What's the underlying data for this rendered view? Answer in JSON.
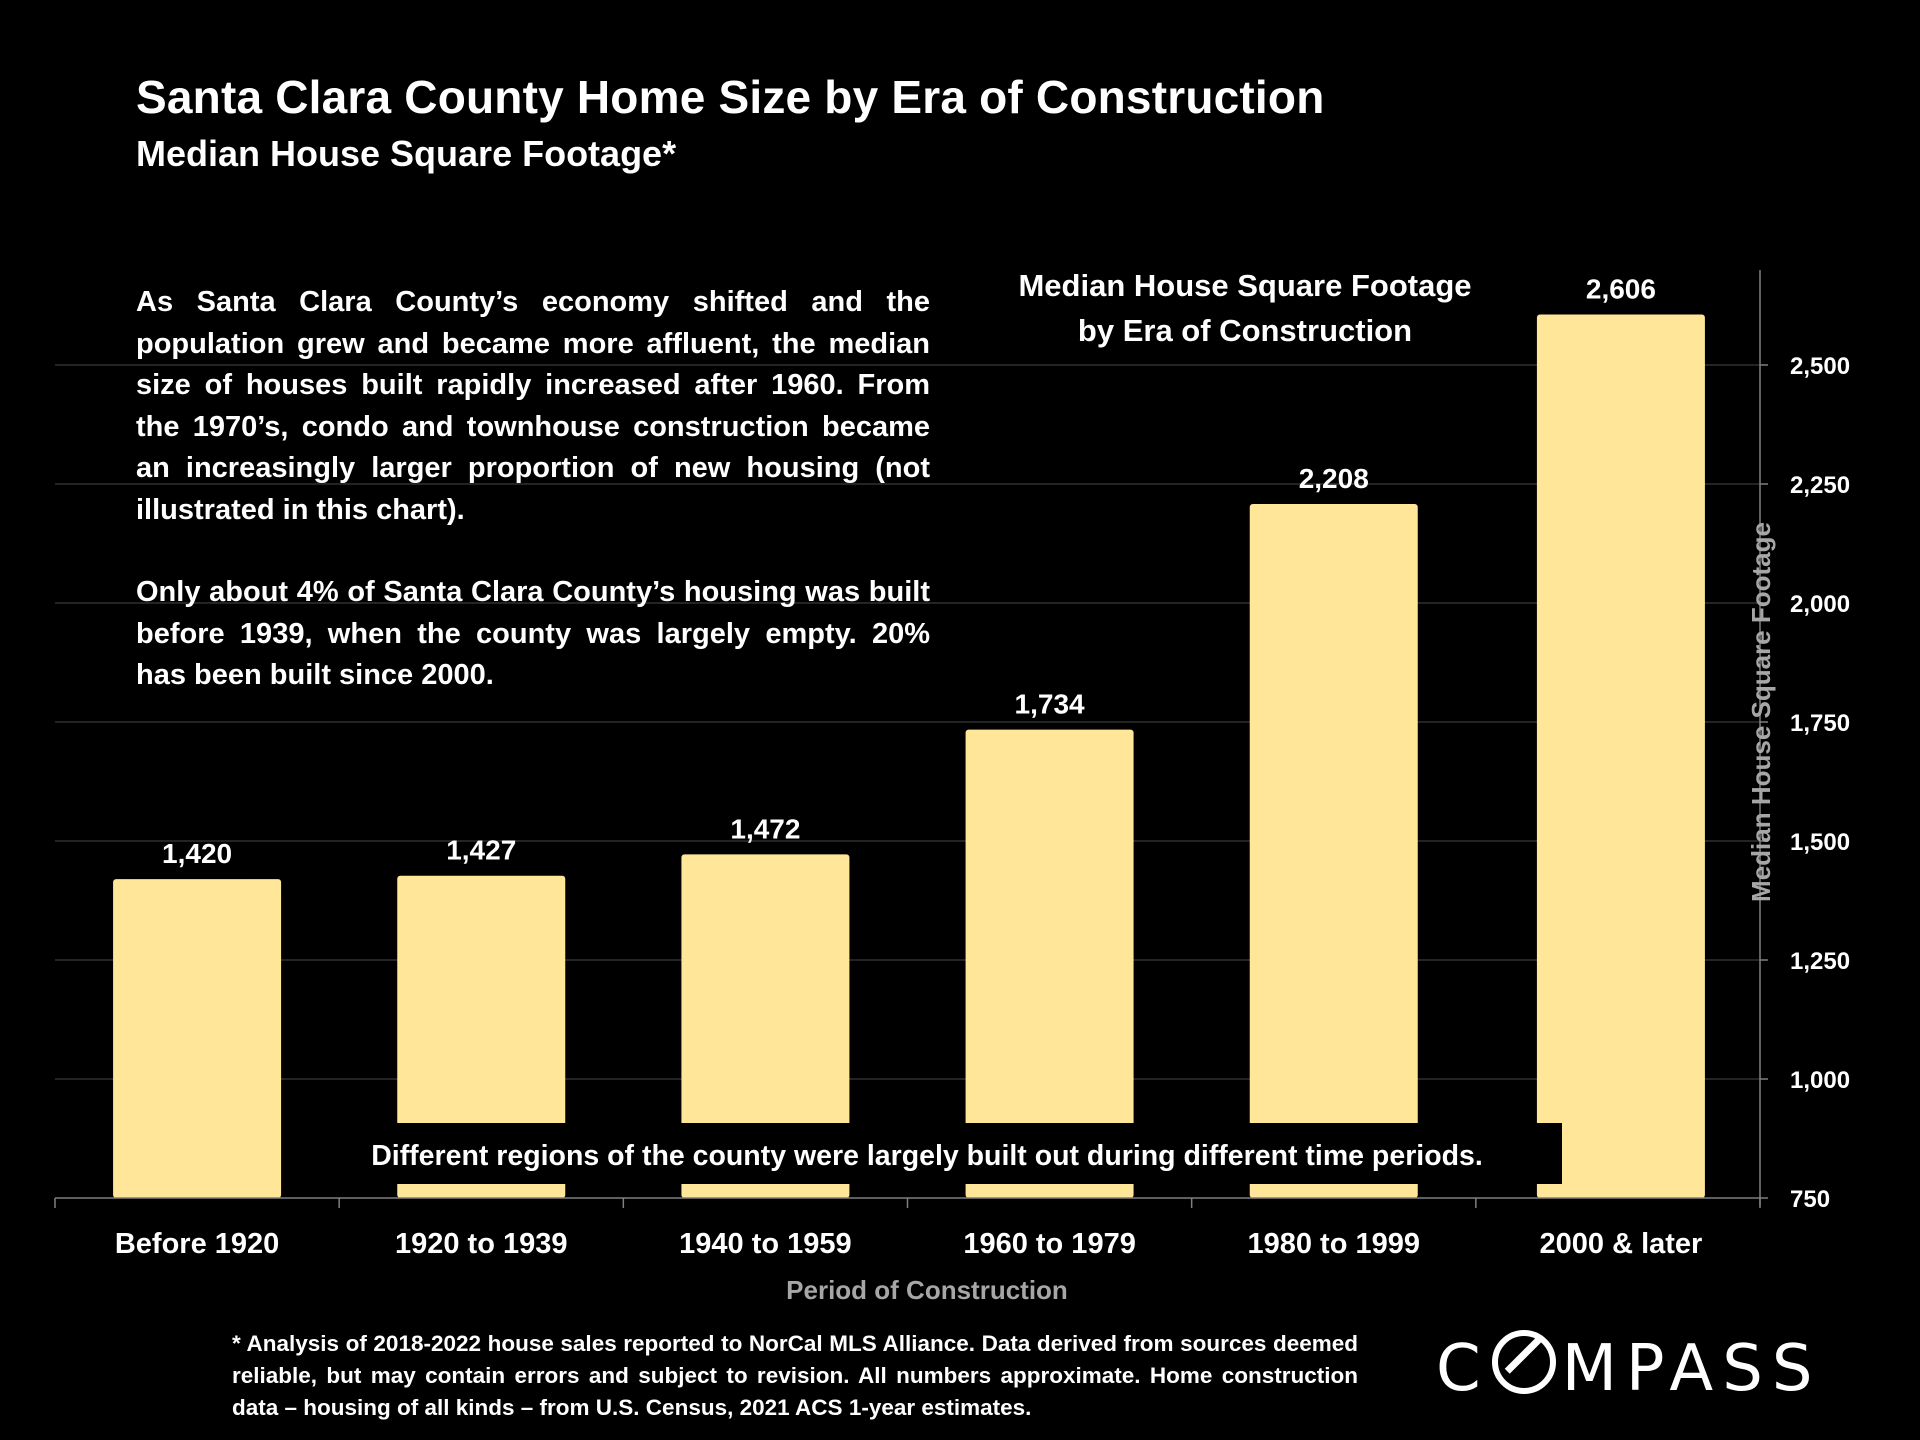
{
  "title": "Santa Clara County Home Size by Era of Construction",
  "subtitle": "Median House Square Footage*",
  "narrative": {
    "para1": "As Santa Clara County’s economy shifted and the population grew and became more affluent, the median size of houses built rapidly increased after 1960. From the 1970’s, condo and townhouse construction became an increasingly larger proportion of new housing (not illustrated in this chart).",
    "para2": "Only about 4% of Santa Clara County’s housing was built before 1939, when the county was largely empty. 20% has been built since 2000."
  },
  "footnote": "* Analysis of 2018-2022 house sales reported to NorCal MLS Alliance.  Data derived from sources deemed reliable, but may contain errors and subject to revision. All numbers approximate. Home construction data – housing of all kinds – from U.S. Census, 2021 ACS 1-year estimates.",
  "logo_text": "COMPASS",
  "chart_data": {
    "type": "bar",
    "title_lines": [
      "Median House Square Footage",
      "by Era of Construction"
    ],
    "categories": [
      "Before 1920",
      "1920 to 1939",
      "1940 to 1959",
      "1960 to 1979",
      "1980 to 1999",
      "2000 & later"
    ],
    "values": [
      1420,
      1427,
      1472,
      1734,
      2208,
      2606
    ],
    "value_labels": [
      "1,420",
      "1,427",
      "1,472",
      "1,734",
      "2,208",
      "2,606"
    ],
    "xlabel": "Period of Construction",
    "ylabel": "Median House Square Footage",
    "ylim": [
      750,
      2700
    ],
    "yticks": [
      750,
      1000,
      1250,
      1500,
      1750,
      2000,
      2250,
      2500
    ],
    "ytick_labels": [
      "750",
      "1,000",
      "1,250",
      "1,500",
      "1,750",
      "2,000",
      "2,250",
      "2,500"
    ],
    "y_axis_side": "right",
    "grid": true,
    "annotation": "Different regions of the county were largely built out during different time periods.",
    "colors": {
      "bar": "#FFE699",
      "background": "#000000",
      "grid": "#3a3a3a",
      "axis_label": "#a6a6a6"
    }
  }
}
